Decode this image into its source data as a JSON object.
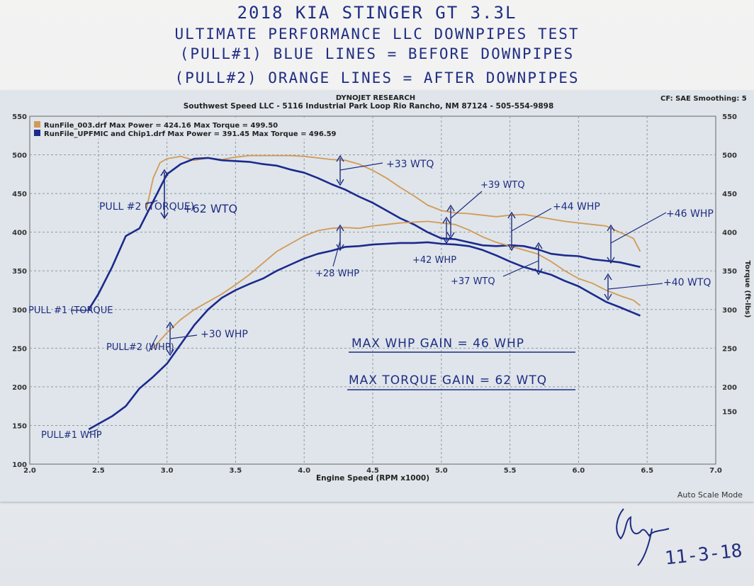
{
  "header": {
    "line1": "2018 KIA STINGER GT 3.3L",
    "line2": "ULTIMATE PERFORMANCE LLC DOWNPIPES TEST",
    "line3": "(PULL#1) BLUE LINES = BEFORE DOWNPIPES",
    "line4": "(PULL#2) ORANGE LINES = AFTER DOWNPIPES"
  },
  "sheet": {
    "company": "DYNOJET RESEARCH",
    "shop": "Southwest Speed LLC - 5116 Industrial Park Loop Rio Rancho, NM 87124 - 505-554-9898",
    "cf": "CF: SAE  Smoothing: 5",
    "legend_orange": "RunFile_003.drf Max Power = 424.16 Max Torque = 499.50",
    "legend_blue": "RunFile_UPFMIC and Chip1.drf Max Power = 391.45 Max Torque = 496.59",
    "xlabel": "Engine Speed (RPM x1000)",
    "ylabel_right": "Torque (ft-lbs)",
    "autoscale": "Auto Scale Mode"
  },
  "annotations": {
    "pull2_torque": "PULL #2 (TORQUE)",
    "pull1_torque": "PULL #1 (TORQUE",
    "pull2_whp": "PULL#2 (WHP)",
    "pull1_whp": "PULL#1 WHP",
    "gain_62wtq": "+62 WTQ",
    "gain_33wtq": "+33 WTQ",
    "gain_39wtq": "+39 WTQ",
    "gain_44whp": "+44 WHP",
    "gain_46whp": "+46 WHP",
    "gain_40wtq": "+40 WTQ",
    "gain_37wtq": "+37 WTQ",
    "gain_42whp": "+42 WHP",
    "gain_28whp": "+28 WHP",
    "gain_30whp": "+30 WHP",
    "max_whp": "MAX WHP GAIN = 46 WHP",
    "max_torque": "MAX TORQUE GAIN = 62 WTQ"
  },
  "signature_date": "11-3-18",
  "colors": {
    "orange": "#d29a57",
    "blue": "#1b2a8e",
    "ink": "#1f2d82",
    "grid": "#8f9aa3"
  },
  "chart_data": {
    "type": "line",
    "xlabel": "Engine Speed (RPM x1000)",
    "ylabel_right": "Torque (ft-lbs)",
    "xlim": [
      2.0,
      7.0
    ],
    "ylim": [
      100,
      550
    ],
    "xticks": [
      "2.0",
      "2.5",
      "3.0",
      "3.5",
      "4.0",
      "4.5",
      "5.0",
      "5.5",
      "6.0",
      "6.5",
      "7.0"
    ],
    "yticks_left": [
      "100",
      "150",
      "200",
      "250",
      "300",
      "350",
      "400",
      "450",
      "500",
      "550"
    ],
    "yticks_right": [
      "150",
      "200",
      "250",
      "300",
      "350",
      "400",
      "450",
      "500",
      "550"
    ],
    "grid": true,
    "legend": "top-left",
    "series": [
      {
        "name": "RunFile_003.drf",
        "kind": "torque",
        "color": "#d29a57",
        "x": [
          2.85,
          2.9,
          2.95,
          3.0,
          3.1,
          3.2,
          3.3,
          3.4,
          3.5,
          3.6,
          3.7,
          3.8,
          3.9,
          4.0,
          4.1,
          4.2,
          4.3,
          4.4,
          4.5,
          4.6,
          4.7,
          4.8,
          4.9,
          5.0,
          5.1,
          5.2,
          5.3,
          5.4,
          5.5,
          5.6,
          5.7,
          5.8,
          5.9,
          6.0,
          6.1,
          6.2,
          6.3,
          6.4,
          6.45
        ],
        "y": [
          430,
          470,
          490,
          495,
          498,
          493,
          496,
          494,
          497,
          499,
          499,
          499,
          499,
          498,
          496,
          494,
          493,
          488,
          480,
          470,
          458,
          447,
          435,
          428,
          425,
          424,
          422,
          420,
          422,
          423,
          420,
          417,
          414,
          412,
          410,
          408,
          400,
          392,
          375
        ]
      },
      {
        "name": "RunFile_UPFMIC and Chip1.drf",
        "kind": "torque",
        "color": "#1b2a8e",
        "x": [
          2.43,
          2.5,
          2.6,
          2.7,
          2.8,
          2.9,
          3.0,
          3.1,
          3.2,
          3.3,
          3.4,
          3.5,
          3.6,
          3.7,
          3.8,
          3.9,
          4.0,
          4.1,
          4.2,
          4.3,
          4.4,
          4.5,
          4.6,
          4.7,
          4.8,
          4.9,
          5.0,
          5.1,
          5.2,
          5.3,
          5.4,
          5.5,
          5.6,
          5.7,
          5.8,
          5.9,
          6.0,
          6.1,
          6.2,
          6.3,
          6.45
        ],
        "y": [
          300,
          320,
          355,
          395,
          405,
          440,
          475,
          488,
          495,
          496,
          493,
          492,
          491,
          488,
          486,
          481,
          477,
          470,
          462,
          455,
          446,
          438,
          428,
          418,
          410,
          400,
          392,
          391,
          387,
          383,
          382,
          383,
          382,
          378,
          372,
          370,
          369,
          365,
          363,
          361,
          355
        ]
      },
      {
        "name": "RunFile_003.drf",
        "kind": "power",
        "color": "#d29a57",
        "x": [
          2.9,
          3.0,
          3.1,
          3.2,
          3.3,
          3.4,
          3.5,
          3.6,
          3.7,
          3.8,
          3.9,
          4.0,
          4.1,
          4.2,
          4.3,
          4.4,
          4.5,
          4.6,
          4.7,
          4.8,
          4.9,
          5.0,
          5.1,
          5.2,
          5.3,
          5.4,
          5.5,
          5.6,
          5.7,
          5.8,
          5.9,
          6.0,
          6.1,
          6.2,
          6.3,
          6.4,
          6.45
        ],
        "y": [
          250,
          270,
          287,
          300,
          310,
          320,
          332,
          345,
          360,
          375,
          385,
          395,
          402,
          405,
          406,
          405,
          408,
          410,
          412,
          413,
          414,
          412,
          410,
          403,
          394,
          387,
          382,
          377,
          372,
          362,
          350,
          340,
          334,
          325,
          318,
          312,
          305
        ]
      },
      {
        "name": "RunFile_UPFMIC and Chip1.drf",
        "kind": "power",
        "color": "#1b2a8e",
        "x": [
          2.43,
          2.5,
          2.6,
          2.7,
          2.8,
          2.9,
          3.0,
          3.1,
          3.2,
          3.3,
          3.4,
          3.5,
          3.6,
          3.7,
          3.8,
          3.9,
          4.0,
          4.1,
          4.2,
          4.3,
          4.4,
          4.5,
          4.6,
          4.7,
          4.8,
          4.9,
          5.0,
          5.1,
          5.2,
          5.3,
          5.4,
          5.5,
          5.6,
          5.7,
          5.8,
          5.9,
          6.0,
          6.1,
          6.2,
          6.3,
          6.45
        ],
        "y": [
          145,
          152,
          162,
          175,
          198,
          213,
          230,
          255,
          280,
          300,
          315,
          325,
          333,
          340,
          350,
          358,
          366,
          372,
          376,
          381,
          382,
          384,
          385,
          386,
          386,
          387,
          385,
          384,
          382,
          377,
          370,
          362,
          355,
          350,
          345,
          337,
          330,
          320,
          310,
          303,
          292
        ]
      }
    ]
  }
}
